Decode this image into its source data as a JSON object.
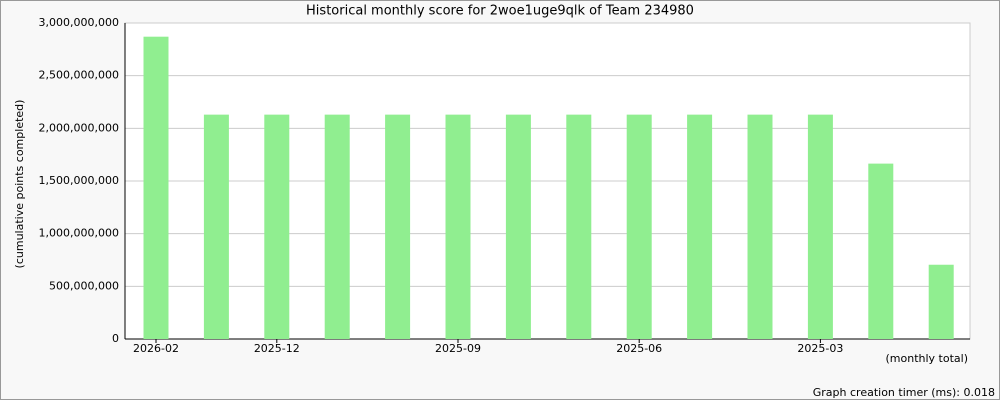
{
  "chart_data": {
    "type": "bar",
    "title": "Historical monthly score for 2woe1uge9qlk of Team 234980",
    "y_label": "(cumulative points completed)",
    "x_label": "(monthly total)",
    "footer": "Graph creation timer (ms): 0.018",
    "categories": [
      "2026-02",
      null,
      "2025-12",
      null,
      null,
      "2025-09",
      null,
      null,
      "2025-06",
      null,
      null,
      "2025-03",
      null,
      null
    ],
    "values": [
      2870000000,
      2130000000,
      2130000000,
      2130000000,
      2130000000,
      2130000000,
      2130000000,
      2130000000,
      2130000000,
      2130000000,
      2130000000,
      2130000000,
      1665000000,
      705000000
    ],
    "color": "#90ee90",
    "ylim": [
      0,
      3000000000
    ],
    "yticks": [
      0,
      {
        "value": 500000000,
        "label": "500,000,000"
      },
      {
        "value": 1000000000,
        "label": "1,000,000,000"
      },
      {
        "value": 1500000000,
        "label": "1,500,000,000"
      },
      {
        "value": 2000000000,
        "label": "2,000,000,000"
      },
      {
        "value": 2500000000,
        "label": "2,500,000,000"
      },
      {
        "value": 3000000000,
        "label": "3,000,000,000"
      }
    ],
    "grid": true
  }
}
